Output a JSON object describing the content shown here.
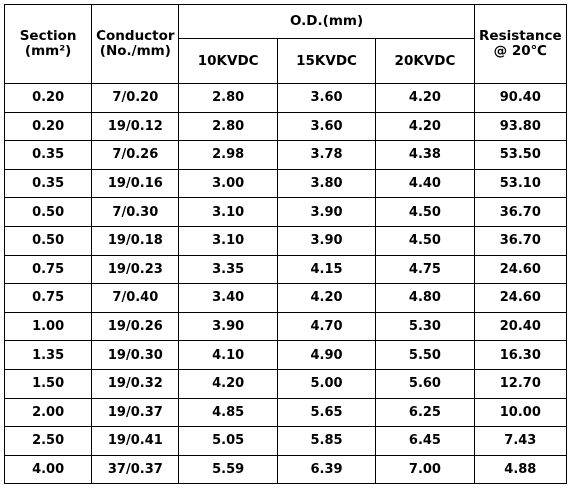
{
  "table": {
    "headers": {
      "section_line1": "Section",
      "section_line2": "(mm²)",
      "conductor_line1": "Conductor",
      "conductor_line2": "(No./mm)",
      "od_group": "O.D.(mm)",
      "od_10": "10KVDC",
      "od_15": "15KVDC",
      "od_20": "20KVDC",
      "resistance_line1": "Resistance",
      "resistance_line2": "@ 20℃"
    },
    "rows": [
      {
        "section": "0.20",
        "conductor": "7/0.20",
        "od10": "2.80",
        "od15": "3.60",
        "od20": "4.20",
        "resistance": "90.40"
      },
      {
        "section": "0.20",
        "conductor": "19/0.12",
        "od10": "2.80",
        "od15": "3.60",
        "od20": "4.20",
        "resistance": "93.80"
      },
      {
        "section": "0.35",
        "conductor": "7/0.26",
        "od10": "2.98",
        "od15": "3.78",
        "od20": "4.38",
        "resistance": "53.50"
      },
      {
        "section": "0.35",
        "conductor": "19/0.16",
        "od10": "3.00",
        "od15": "3.80",
        "od20": "4.40",
        "resistance": "53.10"
      },
      {
        "section": "0.50",
        "conductor": "7/0.30",
        "od10": "3.10",
        "od15": "3.90",
        "od20": "4.50",
        "resistance": "36.70"
      },
      {
        "section": "0.50",
        "conductor": "19/0.18",
        "od10": "3.10",
        "od15": "3.90",
        "od20": "4.50",
        "resistance": "36.70"
      },
      {
        "section": "0.75",
        "conductor": "19/0.23",
        "od10": "3.35",
        "od15": "4.15",
        "od20": "4.75",
        "resistance": "24.60"
      },
      {
        "section": "0.75",
        "conductor": "7/0.40",
        "od10": "3.40",
        "od15": "4.20",
        "od20": "4.80",
        "resistance": "24.60"
      },
      {
        "section": "1.00",
        "conductor": "19/0.26",
        "od10": "3.90",
        "od15": "4.70",
        "od20": "5.30",
        "resistance": "20.40"
      },
      {
        "section": "1.35",
        "conductor": "19/0.30",
        "od10": "4.10",
        "od15": "4.90",
        "od20": "5.50",
        "resistance": "16.30"
      },
      {
        "section": "1.50",
        "conductor": "19/0.32",
        "od10": "4.20",
        "od15": "5.00",
        "od20": "5.60",
        "resistance": "12.70"
      },
      {
        "section": "2.00",
        "conductor": "19/0.37",
        "od10": "4.85",
        "od15": "5.65",
        "od20": "6.25",
        "resistance": "10.00"
      },
      {
        "section": "2.50",
        "conductor": "19/0.41",
        "od10": "5.05",
        "od15": "5.85",
        "od20": "6.45",
        "resistance": "7.43"
      },
      {
        "section": "4.00",
        "conductor": "37/0.37",
        "od10": "5.59",
        "od15": "6.39",
        "od20": "7.00",
        "resistance": "4.88"
      }
    ]
  }
}
